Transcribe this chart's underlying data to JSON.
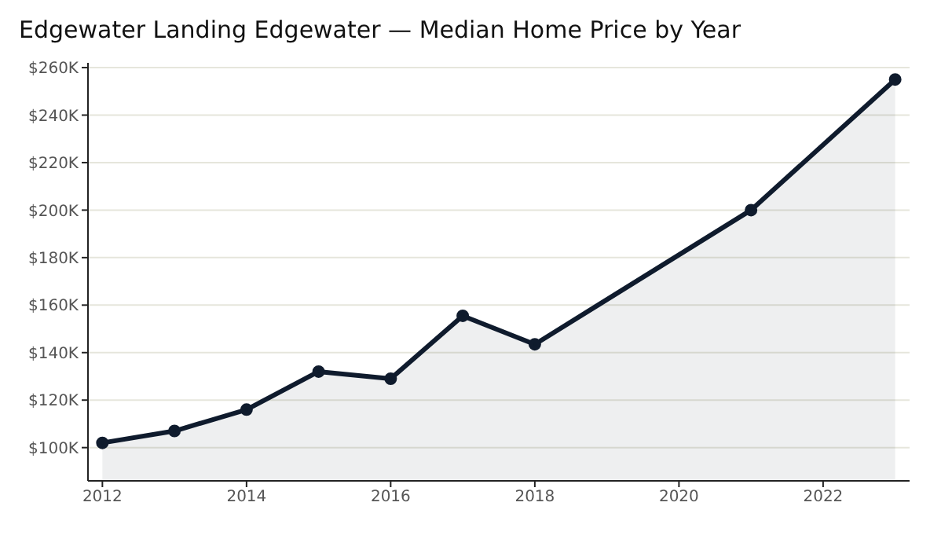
{
  "chart_data": {
    "type": "area",
    "title": "Edgewater Landing Edgewater — Median Home Price by Year",
    "x": [
      2012,
      2013,
      2014,
      2015,
      2016,
      2017,
      2018,
      2021,
      2023
    ],
    "series": [
      {
        "color": "#0f1b2d",
        "values": [
          102,
          107,
          116,
          132,
          129,
          155.5,
          143.5,
          200,
          255
        ]
      }
    ],
    "xlim": [
      2011.8,
      2023.2
    ],
    "xticks": [
      2012,
      2014,
      2016,
      2018,
      2020,
      2022
    ],
    "ylim": [
      86,
      262
    ],
    "yticks": [
      {
        "value": 100,
        "label": "$100K"
      },
      {
        "value": 120,
        "label": "$120K"
      },
      {
        "value": 140,
        "label": "$140K"
      },
      {
        "value": 160,
        "label": "$160K"
      },
      {
        "value": 180,
        "label": "$180K"
      },
      {
        "value": 200,
        "label": "$200K"
      },
      {
        "value": 220,
        "label": "$220K"
      },
      {
        "value": 240,
        "label": "$240K"
      },
      {
        "value": 260,
        "label": "$260K"
      }
    ],
    "grid": "y",
    "marker": "circle",
    "line_style": "solid"
  }
}
